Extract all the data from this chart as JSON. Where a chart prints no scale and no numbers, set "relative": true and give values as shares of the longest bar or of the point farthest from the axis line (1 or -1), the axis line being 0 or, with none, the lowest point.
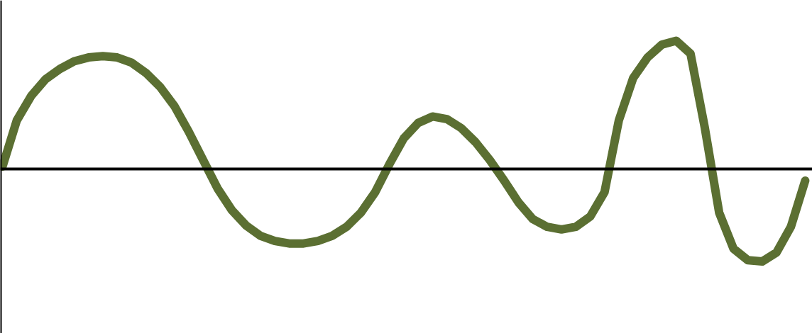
{
  "chart_data": {
    "type": "line",
    "relative": true,
    "categories": [
      null,
      null,
      null,
      null,
      null,
      null,
      null,
      null,
      null,
      null,
      null,
      null,
      null,
      null,
      null,
      null,
      null,
      null,
      null,
      null,
      null,
      null,
      null,
      null,
      null,
      null,
      null,
      null,
      null,
      null,
      null,
      null,
      null,
      null,
      null,
      null,
      null,
      null,
      null,
      null,
      null,
      null,
      null,
      null,
      null,
      null,
      null,
      null,
      null,
      null,
      null,
      null,
      null,
      null,
      null,
      null,
      null
    ],
    "series": [
      {
        "color": "#5b6f32",
        "values": [
          0.02,
          0.38,
          0.57,
          0.7,
          0.78,
          0.84,
          0.87,
          0.88,
          0.87,
          0.83,
          0.75,
          0.64,
          0.49,
          0.29,
          0.07,
          -0.15,
          -0.32,
          -0.44,
          -0.52,
          -0.56,
          -0.58,
          -0.58,
          -0.56,
          -0.52,
          -0.45,
          -0.34,
          -0.18,
          0.04,
          0.24,
          0.36,
          0.41,
          0.39,
          0.32,
          0.21,
          0.07,
          -0.09,
          -0.26,
          -0.39,
          -0.45,
          -0.47,
          -0.45,
          -0.37,
          -0.18,
          0.38,
          0.71,
          0.87,
          0.97,
          1.0,
          0.9,
          0.32,
          -0.34,
          -0.62,
          -0.71,
          -0.72,
          -0.65,
          -0.45,
          -0.09
        ]
      }
    ],
    "grid": false,
    "marker": "none",
    "line_style": "solid"
  }
}
